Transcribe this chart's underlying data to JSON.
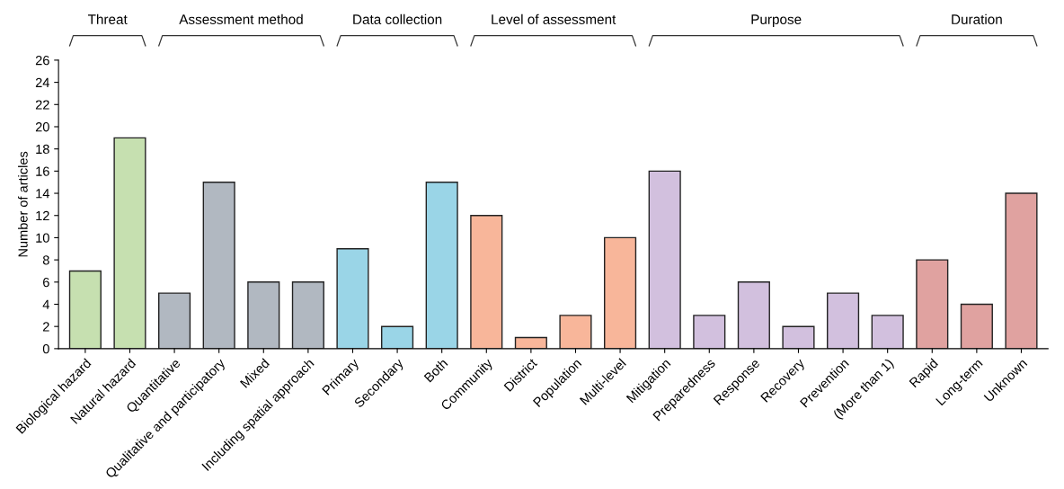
{
  "chart_data": {
    "type": "bar",
    "ylabel": "Number of articles",
    "categories": [
      "Biological hazard",
      "Natural hazard",
      "Quantitative",
      "Qualitative and participatory",
      "Mixed",
      "Including spatial approach",
      "Primary",
      "Secondary",
      "Both",
      "Community",
      "District",
      "Population",
      "Multi-level",
      "Mitigation",
      "Preparedness",
      "Response",
      "Recovery",
      "Prevention",
      "(More than 1)",
      "Rapid",
      "Long-term",
      "Unknown"
    ],
    "values": [
      7,
      19,
      5,
      15,
      6,
      6,
      9,
      2,
      15,
      12,
      1,
      3,
      10,
      16,
      3,
      6,
      2,
      5,
      3,
      8,
      4,
      14
    ],
    "colors": [
      "#c6e0b0",
      "#c6e0b0",
      "#b1b8c1",
      "#b1b8c1",
      "#b1b8c1",
      "#b1b8c1",
      "#9ad5e7",
      "#9ad5e7",
      "#9ad5e7",
      "#f8b69a",
      "#f8b69a",
      "#f8b69a",
      "#f8b69a",
      "#d2c0de",
      "#d2c0de",
      "#d2c0de",
      "#d2c0de",
      "#d2c0de",
      "#d2c0de",
      "#e0a2a0",
      "#e0a2a0",
      "#e0a2a0"
    ],
    "ylim": [
      0,
      26
    ],
    "yticks": [
      0,
      2,
      4,
      6,
      8,
      10,
      12,
      14,
      16,
      18,
      20,
      22,
      24,
      26
    ],
    "annotations": [
      "Threat",
      "Assessment method",
      "Data collection",
      "Level of assessment",
      "Purpose",
      "Duration"
    ],
    "grid": false,
    "legend": false
  }
}
